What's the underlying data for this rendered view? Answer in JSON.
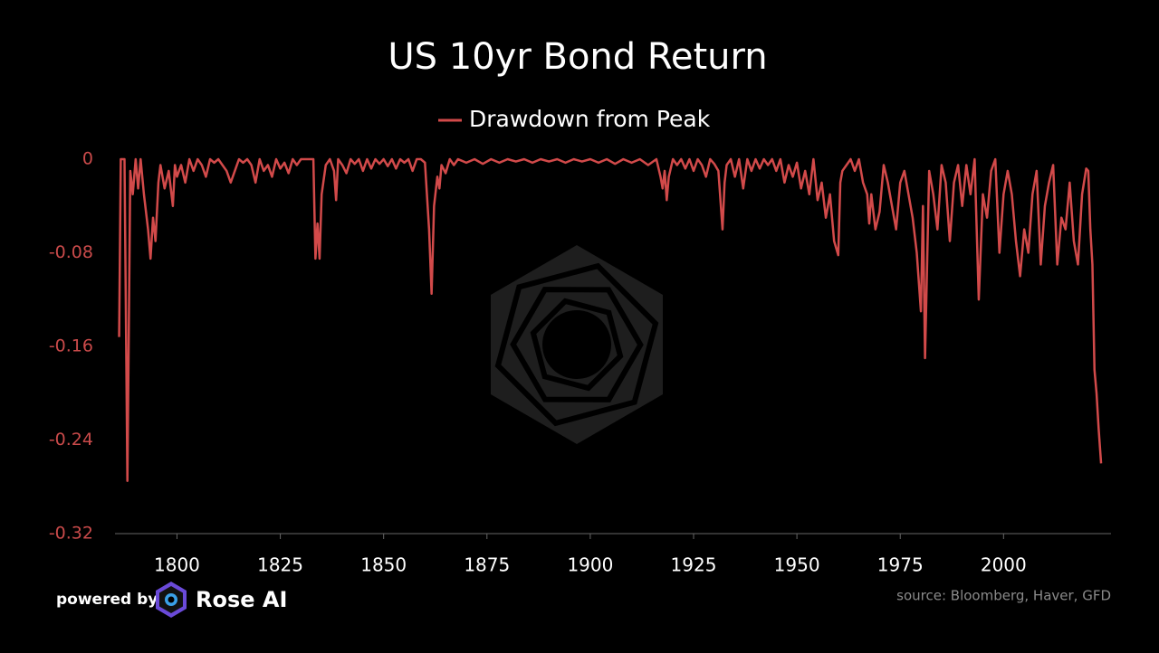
{
  "chart_data": {
    "type": "line",
    "title": "US 10yr Bond Return",
    "legend": "top",
    "xlim": [
      1785,
      2026
    ],
    "xticks": [
      1800,
      1825,
      1850,
      1875,
      1900,
      1925,
      1950,
      1975,
      2000
    ],
    "ylim": [
      -0.32,
      0
    ],
    "yticks": [
      0,
      -0.08,
      -0.16,
      -0.24,
      -0.32
    ],
    "grid": false,
    "source": "source: Bloomberg, Haver, GFD",
    "x": [
      1786,
      1786.4,
      1787.3,
      1788,
      1788.7,
      1789.3,
      1790,
      1790.6,
      1791.2,
      1792,
      1793,
      1793.6,
      1794.2,
      1794.8,
      1795.5,
      1796,
      1797,
      1798,
      1799,
      1799.5,
      1800,
      1801,
      1802,
      1803,
      1804,
      1805,
      1806,
      1807,
      1808,
      1809,
      1810,
      1811,
      1812,
      1813,
      1814,
      1815,
      1816,
      1817,
      1818,
      1819,
      1820,
      1821,
      1822,
      1823,
      1824,
      1825,
      1826,
      1827,
      1828,
      1829,
      1830,
      1831,
      1832,
      1833,
      1833.5,
      1834,
      1834.5,
      1835,
      1836,
      1837,
      1838,
      1838.5,
      1839,
      1840,
      1841,
      1842,
      1843,
      1844,
      1845,
      1846,
      1847,
      1848,
      1849,
      1850,
      1851,
      1852,
      1853,
      1854,
      1855,
      1856,
      1857,
      1858,
      1859,
      1860,
      1861,
      1861.6,
      1862.2,
      1863,
      1863.5,
      1864,
      1865,
      1866,
      1867,
      1868,
      1870,
      1872,
      1874,
      1876,
      1878,
      1880,
      1882,
      1884,
      1886,
      1888,
      1890,
      1892,
      1894,
      1896,
      1898,
      1900,
      1902,
      1904,
      1906,
      1908,
      1910,
      1912,
      1914,
      1916,
      1917,
      1917.5,
      1918,
      1918.5,
      1919,
      1920,
      1921,
      1922,
      1923,
      1924,
      1925,
      1926,
      1927,
      1928,
      1929,
      1930,
      1931,
      1932,
      1932.5,
      1933,
      1934,
      1935,
      1936,
      1937,
      1938,
      1939,
      1940,
      1941,
      1942,
      1943,
      1944,
      1945,
      1946,
      1947,
      1948,
      1949,
      1950,
      1951,
      1952,
      1953,
      1954,
      1955,
      1956,
      1957,
      1958,
      1959,
      1960,
      1960.5,
      1961,
      1962,
      1963,
      1964,
      1965,
      1966,
      1967,
      1967.5,
      1968,
      1969,
      1970,
      1971,
      1972,
      1973,
      1974,
      1975,
      1976,
      1977,
      1978,
      1979,
      1980,
      1980.5,
      1981,
      1981.5,
      1982,
      1983,
      1984,
      1985,
      1986,
      1987,
      1988,
      1989,
      1990,
      1991,
      1992,
      1993,
      1994,
      1995,
      1996,
      1997,
      1998,
      1999,
      2000,
      2001,
      2002,
      2003,
      2004,
      2005,
      2006,
      2007,
      2008,
      2009,
      2010,
      2011,
      2012,
      2013,
      2014,
      2015,
      2016,
      2017,
      2018,
      2019,
      2020,
      2020.5,
      2021,
      2021.5,
      2022,
      2022.5,
      2023,
      2023.6
    ],
    "series": [
      {
        "name": "Drawdown from Peak",
        "color": "#d24a4a",
        "values": [
          -0.152,
          0,
          0,
          -0.275,
          -0.01,
          -0.03,
          0,
          -0.025,
          0,
          -0.03,
          -0.06,
          -0.085,
          -0.05,
          -0.07,
          -0.02,
          -0.005,
          -0.025,
          -0.01,
          -0.04,
          -0.005,
          -0.015,
          -0.005,
          -0.02,
          0,
          -0.01,
          0,
          -0.005,
          -0.015,
          0,
          -0.003,
          0,
          -0.005,
          -0.01,
          -0.02,
          -0.01,
          0,
          -0.003,
          0,
          -0.005,
          -0.02,
          0,
          -0.01,
          -0.005,
          -0.015,
          0,
          -0.008,
          -0.003,
          -0.012,
          0,
          -0.005,
          0,
          0,
          0,
          0,
          -0.085,
          -0.055,
          -0.085,
          -0.03,
          -0.005,
          0,
          -0.01,
          -0.035,
          0,
          -0.005,
          -0.012,
          0,
          -0.004,
          0,
          -0.01,
          0,
          -0.008,
          0,
          -0.004,
          0,
          -0.006,
          0,
          -0.008,
          0,
          -0.003,
          0,
          -0.01,
          0,
          0,
          -0.003,
          -0.06,
          -0.115,
          -0.04,
          -0.015,
          -0.025,
          -0.005,
          -0.012,
          0,
          -0.005,
          0,
          -0.003,
          0,
          -0.004,
          0,
          -0.003,
          0,
          -0.002,
          0,
          -0.003,
          0,
          -0.002,
          0,
          -0.003,
          0,
          -0.002,
          0,
          -0.003,
          0,
          -0.004,
          0,
          -0.003,
          0,
          -0.005,
          0,
          -0.015,
          -0.025,
          -0.01,
          -0.035,
          -0.015,
          0,
          -0.005,
          0,
          -0.008,
          0,
          -0.01,
          0,
          -0.005,
          -0.015,
          0,
          -0.004,
          -0.01,
          -0.06,
          -0.02,
          -0.005,
          0,
          -0.015,
          0,
          -0.025,
          0,
          -0.01,
          0,
          -0.008,
          0,
          -0.005,
          0,
          -0.01,
          0,
          -0.02,
          -0.005,
          -0.015,
          -0.003,
          -0.025,
          -0.01,
          -0.03,
          0,
          -0.035,
          -0.02,
          -0.05,
          -0.03,
          -0.07,
          -0.082,
          -0.02,
          -0.01,
          -0.005,
          0,
          -0.01,
          0,
          -0.02,
          -0.03,
          -0.055,
          -0.03,
          -0.06,
          -0.045,
          -0.005,
          -0.02,
          -0.04,
          -0.06,
          -0.02,
          -0.01,
          -0.03,
          -0.05,
          -0.08,
          -0.13,
          -0.04,
          -0.17,
          -0.09,
          -0.01,
          -0.03,
          -0.06,
          -0.005,
          -0.02,
          -0.07,
          -0.02,
          -0.005,
          -0.04,
          -0.005,
          -0.03,
          0,
          -0.12,
          -0.03,
          -0.05,
          -0.01,
          0,
          -0.08,
          -0.03,
          -0.01,
          -0.03,
          -0.07,
          -0.1,
          -0.06,
          -0.08,
          -0.03,
          -0.01,
          -0.09,
          -0.04,
          -0.02,
          -0.005,
          -0.09,
          -0.05,
          -0.06,
          -0.02,
          -0.07,
          -0.09,
          -0.03,
          -0.008,
          -0.01,
          -0.06,
          -0.09,
          -0.18,
          -0.2,
          -0.23,
          -0.26
        ]
      }
    ]
  },
  "branding": {
    "powered_by": "powered by",
    "brand": "Rose AI"
  }
}
